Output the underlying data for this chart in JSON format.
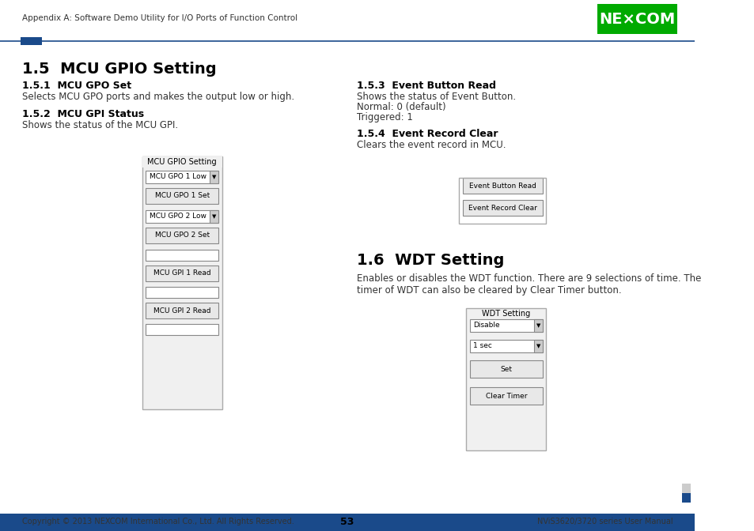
{
  "page_header_text": "Appendix A: Software Demo Utility for I/O Ports of Function Control",
  "nexcom_logo_text": "NE×COM",
  "header_line_color": "#1a4a8a",
  "header_square_color": "#1a4a8a",
  "title_1": "1.5  MCU GPIO Setting",
  "subtitle_1_1": "1.5.1  MCU GPO Set",
  "body_1_1": "Selects MCU GPO ports and makes the output low or high.",
  "subtitle_1_2": "1.5.2  MCU GPI Status",
  "body_1_2": "Shows the status of the MCU GPI.",
  "subtitle_1_3": "1.5.3  Event Button Read",
  "body_1_3_line1": "Shows the status of Event Button.",
  "body_1_3_line2": "Normal: 0 (default)",
  "body_1_3_line3": "Triggered: 1",
  "subtitle_1_4": "1.5.4  Event Record Clear",
  "body_1_4": "Clears the event record in MCU.",
  "title_2": "1.6  WDT Setting",
  "body_2": "Enables or disables the WDT function. There are 9 selections of time. The\ntimer of WDT can also be cleared by Clear Timer button.",
  "footer_bar_color": "#1a4a8a",
  "footer_text_left": "Copyright © 2013 NEXCOM International Co., Ltd. All Rights Reserved.",
  "footer_text_center": "53",
  "footer_text_right": "NViS3620/3720 series User Manual",
  "mcu_gpio_panel": {
    "title": "MCU GPIO Setting",
    "dropdown1_text": "MCU GPO 1 Low",
    "button1_text": "MCU GPO 1 Set",
    "dropdown2_text": "MCU GPO 2 Low",
    "button2_text": "MCU GPO 2 Set",
    "input3_text": "",
    "button3_text": "MCU GPI 1 Read",
    "input4_text": "",
    "button4_text": "MCU GPI 2 Read",
    "input5_text": ""
  },
  "event_panel": {
    "button1_text": "Event Button Read",
    "button2_text": "Event Record Clear"
  },
  "wdt_panel": {
    "title": "WDT Setting",
    "dropdown1_text": "Disable",
    "dropdown2_text": "1 sec",
    "button1_text": "Set",
    "button2_text": "Clear Timer"
  },
  "bg_color": "#ffffff",
  "panel_bg": "#f0f0f0",
  "panel_border": "#999999",
  "button_bg": "#e8e8e8",
  "button_border": "#666666",
  "text_color": "#000000",
  "green_logo_bg": "#00aa00"
}
